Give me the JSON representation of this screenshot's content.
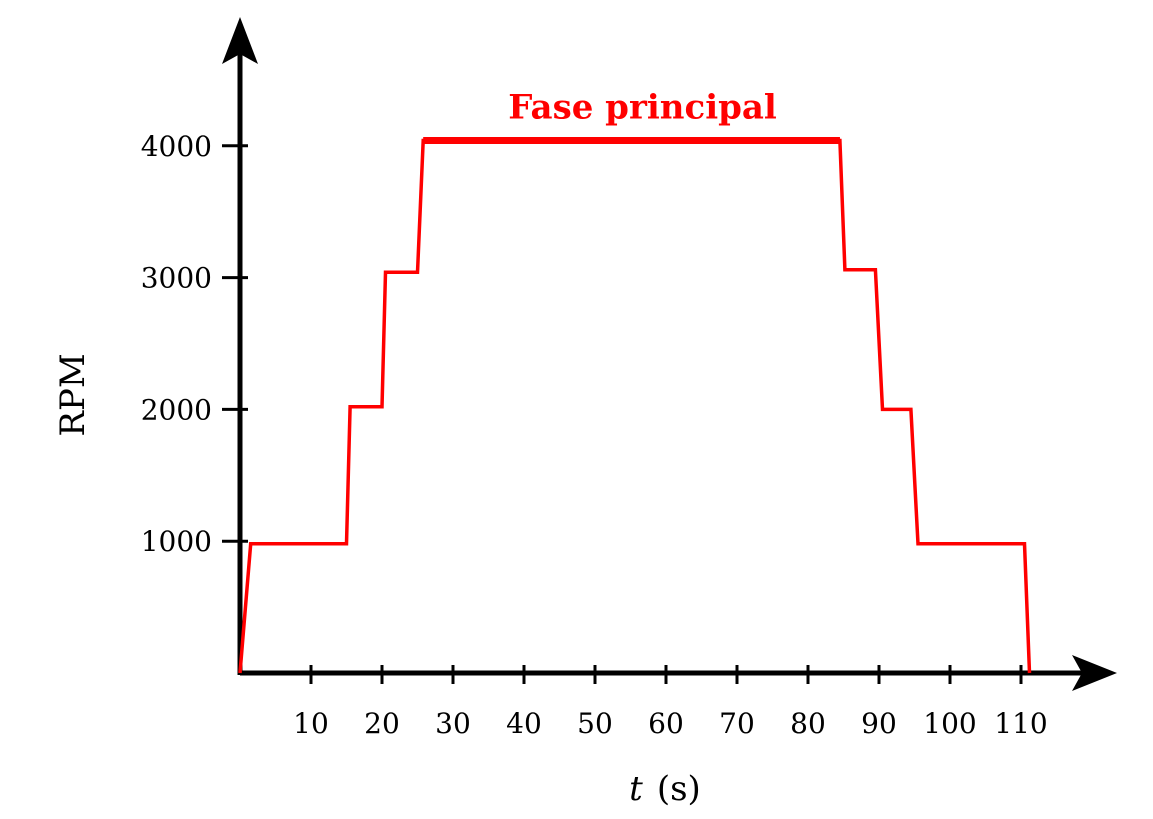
{
  "chart_data": {
    "type": "line",
    "title": "",
    "xlabel_var": "t",
    "xlabel_unit": "(s)",
    "ylabel": "RPM",
    "xlim": [
      0,
      115
    ],
    "ylim": [
      0,
      4000
    ],
    "x_ticks": [
      10,
      20,
      30,
      40,
      50,
      60,
      70,
      80,
      90,
      100,
      110
    ],
    "y_ticks": [
      1000,
      2000,
      3000,
      4000
    ],
    "grid": false,
    "series": [
      {
        "name": "RPM",
        "color": "#ff0000",
        "x": [
          0,
          1.5,
          15,
          15.5,
          20,
          20.5,
          25,
          25.8,
          84.5,
          85.2,
          89.5,
          90.5,
          94.5,
          95.5,
          110.5,
          111.2
        ],
        "y": [
          0,
          980,
          980,
          2020,
          2020,
          3040,
          3040,
          4040,
          4040,
          3060,
          3060,
          2000,
          2000,
          980,
          980,
          0
        ]
      }
    ],
    "annotations": [
      {
        "text": "Fase principal",
        "color": "#ff0000",
        "x_start": 25.8,
        "x_end": 84.5,
        "y": 4040
      }
    ]
  }
}
